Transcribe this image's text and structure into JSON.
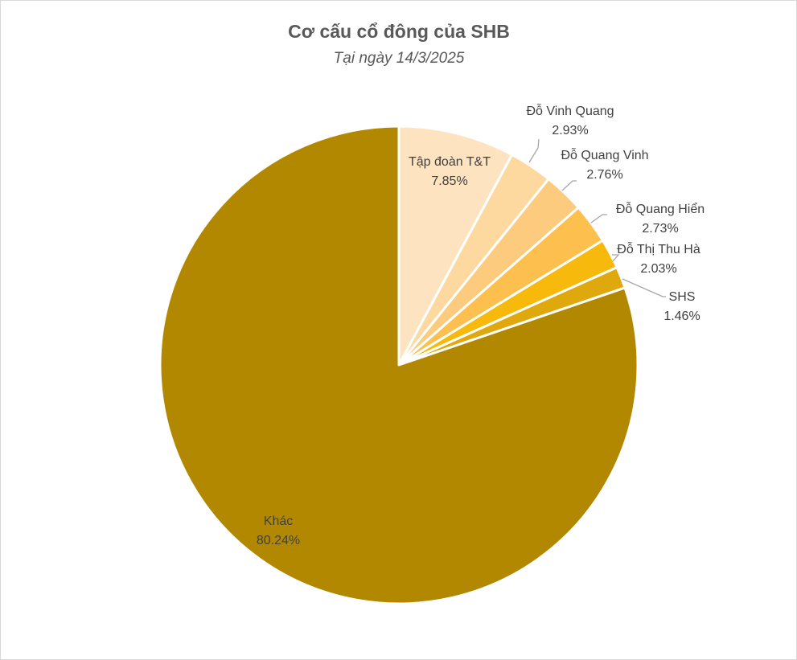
{
  "chart_data": {
    "type": "pie",
    "title": "Cơ cấu cổ đông của SHB",
    "subtitle": "Tại ngày 14/3/2025",
    "unit": "%",
    "slices": [
      {
        "label": "Tập đoàn T&T",
        "value": 7.85,
        "value_text": "7.85%",
        "color": "#fde3c0"
      },
      {
        "label": "Đỗ Vinh Quang",
        "value": 2.93,
        "value_text": "2.93%",
        "color": "#fdd9a0"
      },
      {
        "label": "Đỗ Quang Vinh",
        "value": 2.76,
        "value_text": "2.76%",
        "color": "#fdcb7e"
      },
      {
        "label": "Đỗ Quang Hiển",
        "value": 2.73,
        "value_text": "2.73%",
        "color": "#fdc04f"
      },
      {
        "label": "Đỗ Thị Thu Hà",
        "value": 2.03,
        "value_text": "2.03%",
        "color": "#f6b90c"
      },
      {
        "label": "SHS",
        "value": 1.46,
        "value_text": "1.46%",
        "color": "#dfa80d"
      },
      {
        "label": "Khác",
        "value": 80.24,
        "value_text": "80.24%",
        "color": "#b28800"
      }
    ],
    "start_angle": "12 o'clock",
    "direction": "clockwise",
    "legend": "none"
  }
}
